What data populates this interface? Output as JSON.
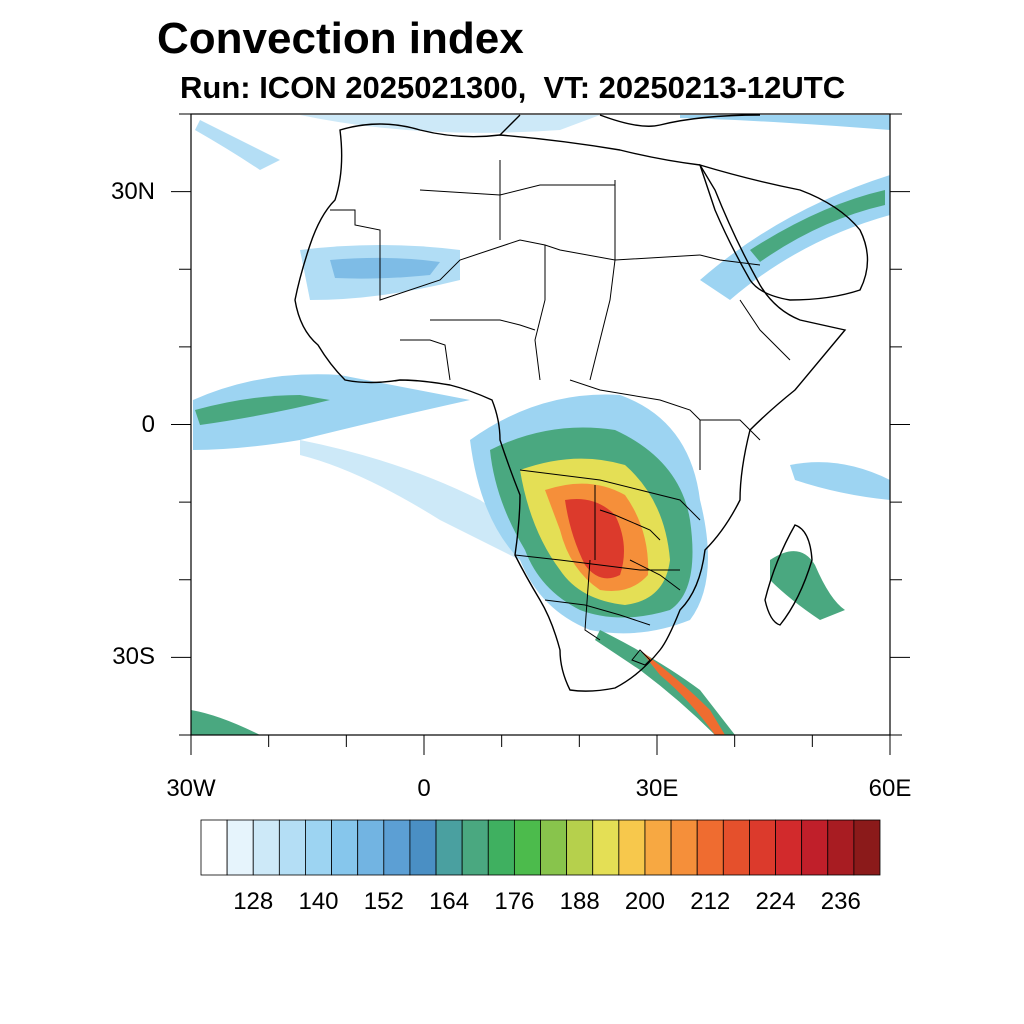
{
  "title": "Convection index",
  "subtitle": "Run: ICON 2025021300,  VT: 20250213-12UTC",
  "map": {
    "region": "Africa",
    "lat_labels": [
      "30N",
      "0",
      "30S"
    ],
    "lon_labels": [
      "30W",
      "0",
      "30E",
      "60E"
    ],
    "lat_values": [
      30,
      0,
      -30
    ],
    "lon_values": [
      -30,
      0,
      30,
      60
    ],
    "lat_range": [
      -40,
      40
    ],
    "lon_range": [
      -30,
      60
    ]
  },
  "colorbar": {
    "tick_labels": [
      "128",
      "140",
      "152",
      "164",
      "176",
      "188",
      "200",
      "212",
      "224",
      "236"
    ],
    "colors": [
      "#ffffff",
      "#e6f4fc",
      "#cde9f8",
      "#b4def5",
      "#9dd4f2",
      "#86c6ec",
      "#72b4e2",
      "#5c9fd4",
      "#4a8fc4",
      "#4aa0a0",
      "#4aa880",
      "#3fb060",
      "#4cbb4c",
      "#88c44c",
      "#b6d04c",
      "#e4df55",
      "#f7c84c",
      "#f7a842",
      "#f58f3a",
      "#ef6c30",
      "#e5502c",
      "#dc3a2c",
      "#d22a2c",
      "#c01f2a",
      "#a81c22",
      "#8b1a1a"
    ]
  }
}
